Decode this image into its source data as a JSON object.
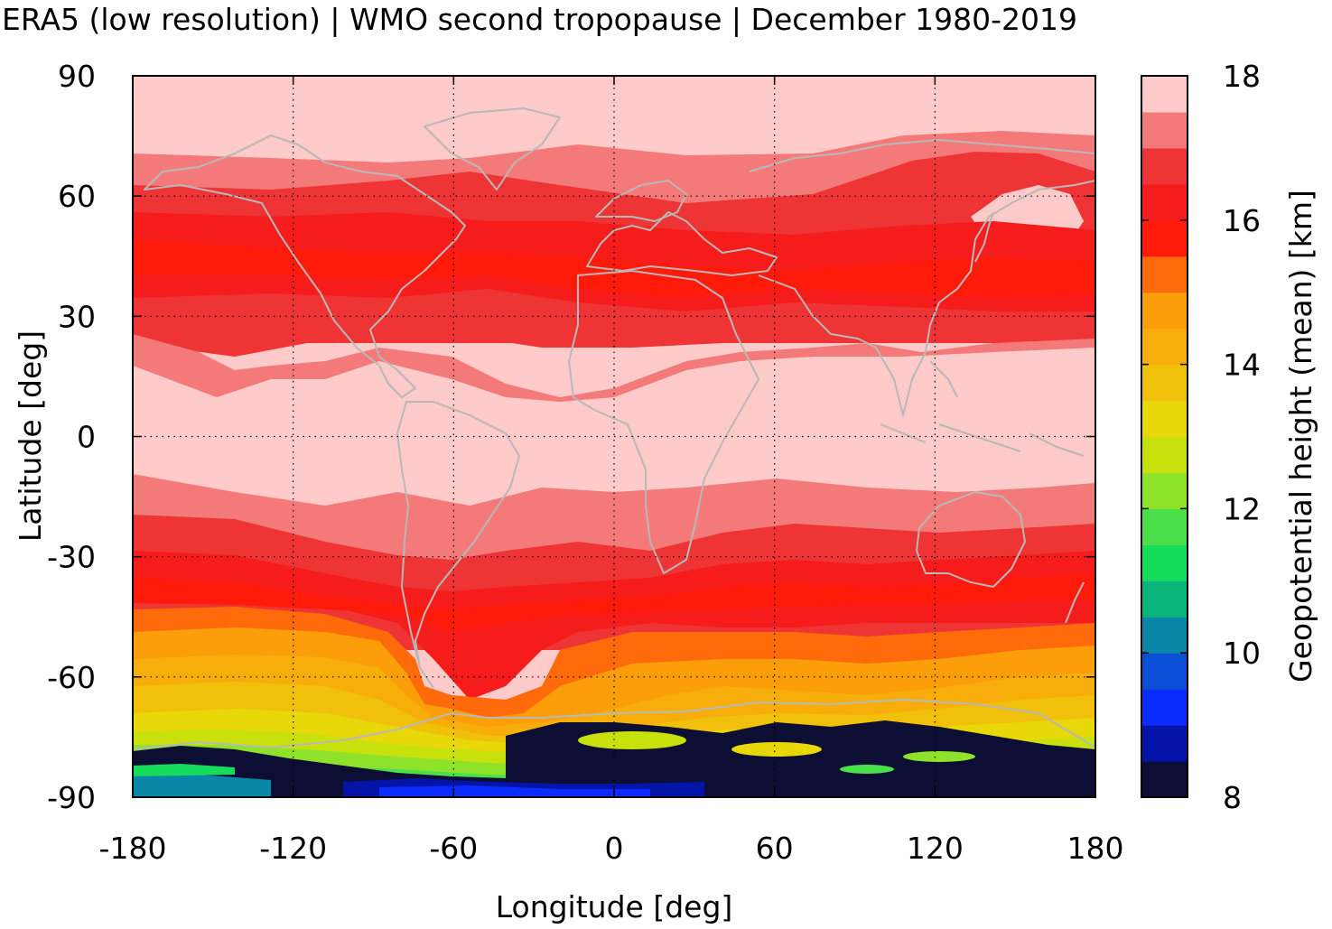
{
  "chart_data": {
    "type": "heatmap",
    "title": "ERA5 (low resolution) | WMO second tropopause | December 1980-2019",
    "xlabel": "Longitude [deg]",
    "ylabel": "Latitude [deg]",
    "xlim": [
      -180,
      180
    ],
    "ylim": [
      -90,
      90
    ],
    "x_ticks": [
      "-180",
      "-120",
      "-60",
      "0",
      "60",
      "120",
      "180"
    ],
    "y_ticks": [
      "90",
      "60",
      "30",
      "0",
      "-30",
      "-60",
      "-90"
    ],
    "grid": true,
    "colorbar": {
      "label": "Geopotential height (mean) [km]",
      "range": [
        8,
        18
      ],
      "ticks": [
        "8",
        "10",
        "12",
        "14",
        "16",
        "18"
      ],
      "colors": [
        "#0c0e33",
        "#0414a8",
        "#0a2cff",
        "#0a4fd6",
        "#0a87a8",
        "#0ab47a",
        "#16dc5c",
        "#4be04a",
        "#8fe22a",
        "#c8e00c",
        "#e8d80a",
        "#f0c00a",
        "#f8ae0a",
        "#fb9e0a",
        "#ff6a0a",
        "#ff1a0a",
        "#f71c1c",
        "#ee3434",
        "#f47a7a",
        "#ffcaca"
      ]
    },
    "latitude_band_profile": [
      {
        "lat": 90,
        "km": 17.9
      },
      {
        "lat": 70,
        "km": 17.4
      },
      {
        "lat": 60,
        "km": 16.6
      },
      {
        "lat": 45,
        "km": 16.2
      },
      {
        "lat": 30,
        "km": 16.6
      },
      {
        "lat": 20,
        "km": 17.4
      },
      {
        "lat": 10,
        "km": 17.9
      },
      {
        "lat": 0,
        "km": 17.9
      },
      {
        "lat": -15,
        "km": 17.9
      },
      {
        "lat": -25,
        "km": 17.4
      },
      {
        "lat": -35,
        "km": 16.6
      },
      {
        "lat": -45,
        "km": 16.2
      },
      {
        "lat": -52,
        "km": 14.9
      },
      {
        "lat": -60,
        "km": 14.2
      },
      {
        "lat": -68,
        "km": 13.3
      },
      {
        "lat": -75,
        "km": 12.2
      },
      {
        "lat": -82,
        "km": 9.5
      },
      {
        "lat": -90,
        "km": 8.3
      }
    ]
  }
}
